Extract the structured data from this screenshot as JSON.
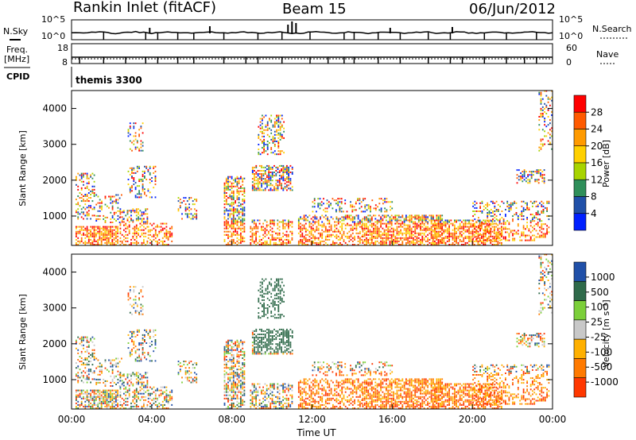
{
  "header": {
    "station": "Rankin Inlet (fitACF)",
    "beam": "Beam 15",
    "date": "06/Jun/2012"
  },
  "top_panels": {
    "nsky_label": "N.Sky",
    "nsky_ticks": [
      "10^5",
      "10^0"
    ],
    "nsearch_label": "N.Search",
    "nsearch_ticks": [
      "10^5",
      "10^0"
    ],
    "freq_label_1": "Freq.",
    "freq_label_2": "[MHz]",
    "freq_ticks": [
      "18",
      "8"
    ],
    "nave_label": "Nave",
    "nave_ticks": [
      "60",
      "0"
    ],
    "cpid_label": "CPID",
    "cpid_value": "themis 3300"
  },
  "chart_data": [
    {
      "type": "heatmap",
      "panel": "power",
      "ylabel": "Slant Range [km]",
      "y_ticks": [
        "1000",
        "2000",
        "3000",
        "4000"
      ],
      "x_ticks": [
        "00:00",
        "04:00",
        "08:00",
        "12:00",
        "16:00",
        "20:00",
        "00:00"
      ],
      "xlim_hours": [
        0,
        24
      ],
      "ylim_km": [
        180,
        4500
      ],
      "colorbar_label": "Power [dB]",
      "colorbar_ticks": [
        "28",
        "24",
        "20",
        "16",
        "12",
        "8",
        "4"
      ],
      "colorbar_range": [
        0,
        30
      ],
      "colors": [
        "#ff0000",
        "#ff5a00",
        "#ff9a00",
        "#ffd000",
        "#a8d400",
        "#2f8f5a",
        "#2050a8",
        "#0020ff"
      ]
    },
    {
      "type": "heatmap",
      "panel": "velocity",
      "ylabel": "Slant Range [km]",
      "y_ticks": [
        "1000",
        "2000",
        "3000",
        "4000"
      ],
      "x_ticks": [
        "00:00",
        "04:00",
        "08:00",
        "12:00",
        "16:00",
        "20:00",
        "00:00"
      ],
      "xlabel": "Time UT",
      "xlim_hours": [
        0,
        24
      ],
      "ylim_km": [
        180,
        4500
      ],
      "colorbar_label": "Velocity [m s⁻¹]",
      "colorbar_ticks": [
        "1000",
        "500",
        "100",
        "25",
        "-25",
        "-100",
        "-500",
        "-1000"
      ],
      "colors": [
        "#2050a8",
        "#2f6a4a",
        "#7ccf3a",
        "#c8c8c8",
        "#ffb000",
        "#ff7a00",
        "#ff3800"
      ]
    }
  ]
}
